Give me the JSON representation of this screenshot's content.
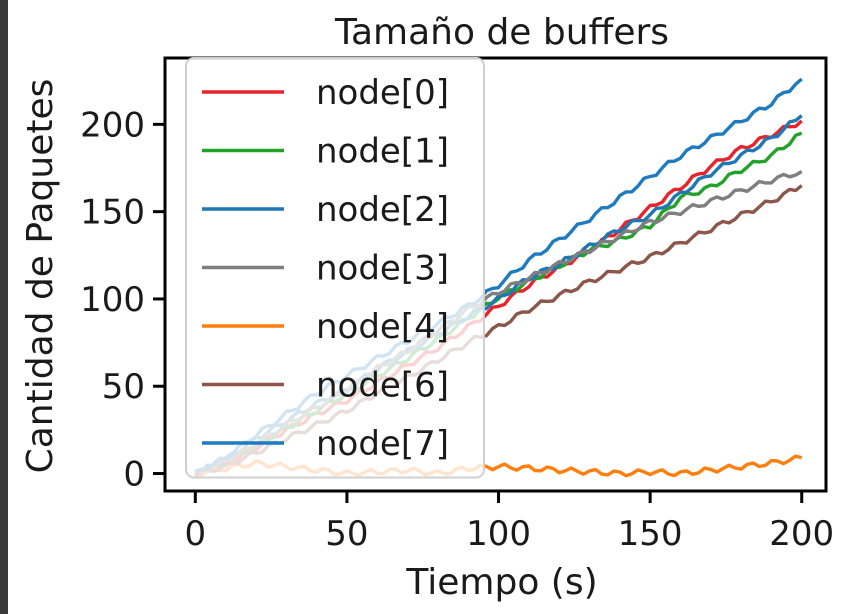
{
  "chart_data": {
    "type": "line",
    "title": "Tamaño de buffers",
    "xlabel": "Tiempo (s)",
    "ylabel": "Cantidad de Paquetes",
    "xlim": [
      -10,
      208
    ],
    "ylim": [
      -10,
      238
    ],
    "xticks": [
      0,
      50,
      100,
      150,
      200
    ],
    "yticks": [
      0,
      50,
      100,
      150,
      200
    ],
    "xtick_labels": [
      "0",
      "50",
      "100",
      "150",
      "200"
    ],
    "ytick_labels": [
      "0",
      "50",
      "100",
      "150",
      "200"
    ],
    "grid": false,
    "legend_position": "upper-left",
    "series": [
      {
        "name": "node[0]",
        "color": "#e8242a",
        "x": [
          0,
          10,
          20,
          30,
          40,
          50,
          60,
          70,
          80,
          90,
          100,
          110,
          120,
          130,
          140,
          150,
          160,
          170,
          180,
          190,
          200
        ],
        "y": [
          0,
          5,
          15,
          25,
          34,
          42,
          52,
          62,
          72,
          84,
          96,
          108,
          118,
          128,
          140,
          152,
          164,
          176,
          186,
          194,
          202
        ]
      },
      {
        "name": "node[1]",
        "color": "#22a22a",
        "x": [
          0,
          10,
          20,
          30,
          40,
          50,
          60,
          70,
          80,
          90,
          100,
          110,
          120,
          130,
          140,
          150,
          160,
          170,
          180,
          190,
          200
        ],
        "y": [
          0,
          6,
          16,
          26,
          36,
          46,
          56,
          66,
          77,
          89,
          101,
          110,
          119,
          128,
          134,
          142,
          158,
          164,
          174,
          182,
          195
        ]
      },
      {
        "name": "node[2]",
        "color": "#1f77b4",
        "x": [
          0,
          10,
          20,
          30,
          40,
          50,
          60,
          70,
          80,
          90,
          100,
          110,
          120,
          130,
          140,
          150,
          160,
          170,
          180,
          190,
          200
        ],
        "y": [
          0,
          8,
          20,
          30,
          40,
          48,
          60,
          70,
          80,
          90,
          100,
          112,
          120,
          130,
          140,
          148,
          160,
          172,
          182,
          192,
          205
        ]
      },
      {
        "name": "node[3]",
        "color": "#7f7f7f",
        "x": [
          0,
          10,
          20,
          30,
          40,
          50,
          60,
          70,
          80,
          90,
          100,
          110,
          120,
          130,
          140,
          150,
          160,
          170,
          180,
          190,
          200
        ],
        "y": [
          0,
          7,
          17,
          28,
          38,
          48,
          60,
          70,
          82,
          94,
          104,
          112,
          120,
          128,
          136,
          144,
          150,
          156,
          162,
          168,
          173
        ]
      },
      {
        "name": "node[4]",
        "color": "#ff7f0e",
        "x": [
          0,
          10,
          20,
          30,
          40,
          50,
          60,
          70,
          80,
          90,
          100,
          110,
          120,
          130,
          140,
          150,
          160,
          170,
          180,
          190,
          200
        ],
        "y": [
          0,
          3,
          6,
          4,
          2,
          0,
          1,
          2,
          0,
          3,
          4,
          3,
          2,
          1,
          0,
          1,
          0,
          2,
          4,
          6,
          9
        ]
      },
      {
        "name": "node[6]",
        "color": "#8c564b",
        "x": [
          0,
          10,
          20,
          30,
          40,
          50,
          60,
          70,
          80,
          90,
          100,
          110,
          120,
          130,
          140,
          150,
          160,
          170,
          180,
          190,
          200
        ],
        "y": [
          0,
          4,
          12,
          20,
          28,
          36,
          46,
          55,
          65,
          75,
          84,
          94,
          102,
          110,
          117,
          124,
          132,
          140,
          148,
          156,
          165
        ]
      },
      {
        "name": "node[7]",
        "color": "#1f7bbf",
        "x": [
          0,
          10,
          20,
          30,
          40,
          50,
          60,
          70,
          80,
          90,
          100,
          110,
          120,
          130,
          140,
          150,
          160,
          170,
          180,
          190,
          200
        ],
        "y": [
          0,
          9,
          22,
          34,
          46,
          56,
          66,
          76,
          86,
          96,
          108,
          122,
          134,
          146,
          158,
          170,
          182,
          192,
          202,
          212,
          226
        ]
      }
    ]
  }
}
